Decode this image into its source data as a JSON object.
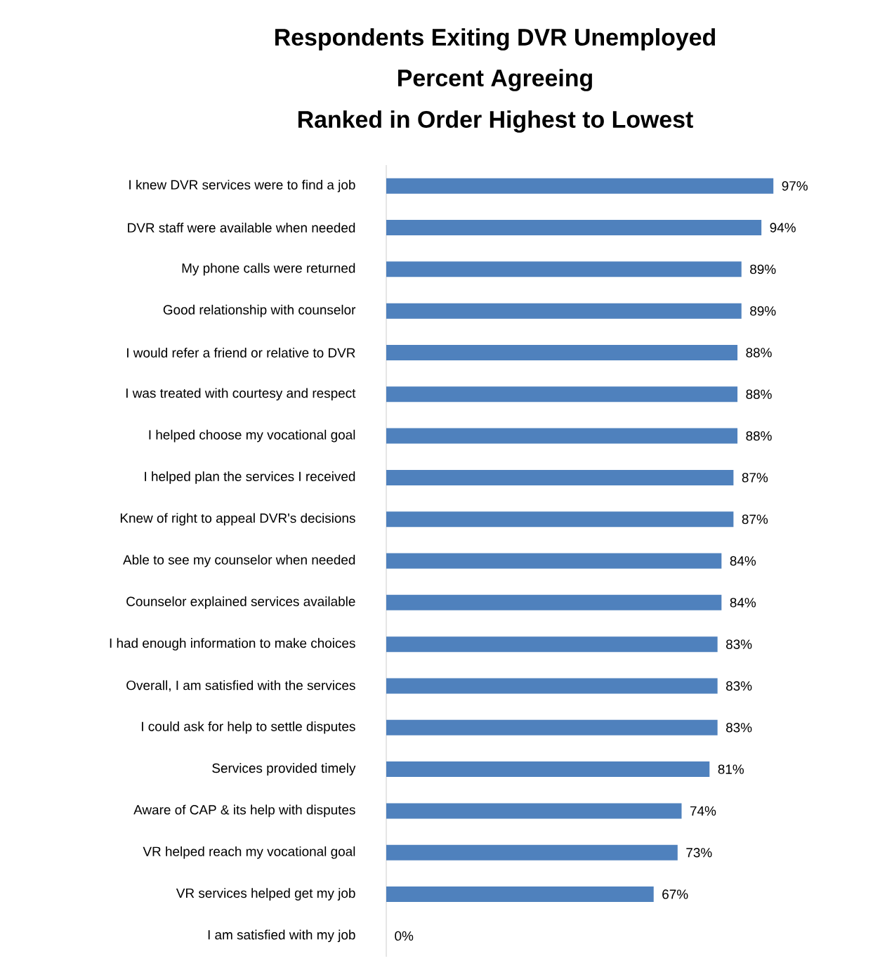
{
  "chart_data": {
    "type": "bar",
    "orientation": "horizontal",
    "title": "Respondents Exiting DVR Unemployed",
    "subtitle": "Percent Agreeing",
    "annotations": [
      "Ranked in Order Highest to Lowest"
    ],
    "categories": [
      "I knew DVR services were to find a job",
      "DVR staff were available when needed",
      "My phone calls were returned",
      "Good relationship with counselor",
      "I would refer a friend or relative to DVR",
      "I was treated with courtesy and respect",
      "I helped choose my vocational goal",
      "I helped plan the services I received",
      "Knew of right to appeal DVR's decisions",
      "Able to see my counselor when needed",
      "Counselor explained services available",
      "I had enough information to make choices",
      "Overall, I am satisfied with the services",
      "I could ask for help to settle disputes",
      "Services provided timely",
      "Aware of CAP & its help with disputes",
      "VR helped reach my vocational goal",
      "VR services helped get my job",
      "I am satisfied with my job"
    ],
    "values": [
      97,
      94,
      89,
      89,
      88,
      88,
      88,
      87,
      87,
      84,
      84,
      83,
      83,
      83,
      81,
      74,
      73,
      67,
      0
    ],
    "value_labels": [
      "97%",
      "94%",
      "89%",
      "89%",
      "88%",
      "88%",
      "88%",
      "87%",
      "87%",
      "84%",
      "84%",
      "83%",
      "83%",
      "83%",
      "81%",
      "74%",
      "73%",
      "67%",
      "0%"
    ],
    "color": "#4f81bd",
    "tick_labels": "y"
  }
}
